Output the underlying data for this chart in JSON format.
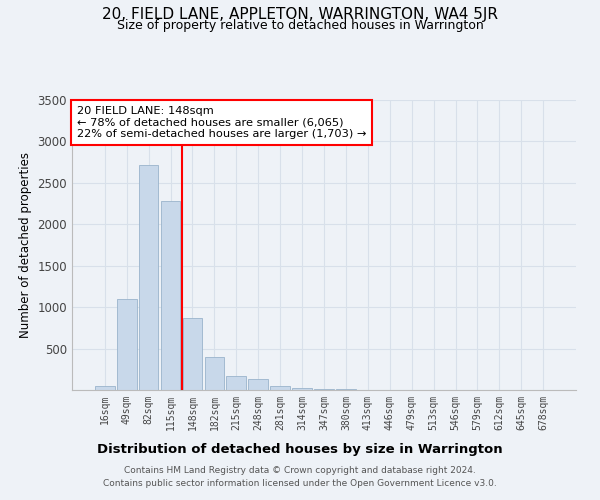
{
  "title": "20, FIELD LANE, APPLETON, WARRINGTON, WA4 5JR",
  "subtitle": "Size of property relative to detached houses in Warrington",
  "xlabel": "Distribution of detached houses by size in Warrington",
  "ylabel": "Number of detached properties",
  "footer_line1": "Contains HM Land Registry data © Crown copyright and database right 2024.",
  "footer_line2": "Contains public sector information licensed under the Open Government Licence v3.0.",
  "annotation_title": "20 FIELD LANE: 148sqm",
  "annotation_line1": "← 78% of detached houses are smaller (6,065)",
  "annotation_line2": "22% of semi-detached houses are larger (1,703) →",
  "bar_color": "#c8d8ea",
  "bar_edge_color": "#9ab4cc",
  "marker_color": "red",
  "background_color": "#eef2f7",
  "categories": [
    "16sqm",
    "49sqm",
    "82sqm",
    "115sqm",
    "148sqm",
    "182sqm",
    "215sqm",
    "248sqm",
    "281sqm",
    "314sqm",
    "347sqm",
    "380sqm",
    "413sqm",
    "446sqm",
    "479sqm",
    "513sqm",
    "546sqm",
    "579sqm",
    "612sqm",
    "645sqm",
    "678sqm"
  ],
  "values": [
    50,
    1100,
    2720,
    2280,
    870,
    400,
    170,
    130,
    50,
    30,
    15,
    10,
    5,
    3,
    2,
    2,
    1,
    1,
    1,
    1,
    1
  ],
  "marker_index": 4,
  "ylim": [
    0,
    3500
  ],
  "yticks": [
    0,
    500,
    1000,
    1500,
    2000,
    2500,
    3000,
    3500
  ]
}
